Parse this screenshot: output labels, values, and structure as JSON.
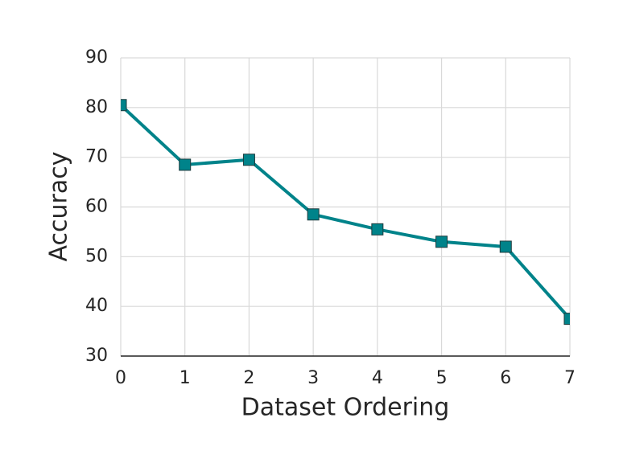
{
  "chart_data": {
    "type": "line",
    "xlabel": "Dataset Ordering",
    "ylabel": "Accuracy",
    "x": [
      0,
      1,
      2,
      3,
      4,
      5,
      6,
      7
    ],
    "series": [
      {
        "color": "#00838a",
        "values": [
          80.5,
          68.5,
          69.5,
          58.5,
          55.5,
          53,
          52,
          37.5
        ]
      }
    ],
    "xlim": [
      0,
      7
    ],
    "xticks": [
      0,
      1,
      2,
      3,
      4,
      5,
      6,
      7
    ],
    "ylim": [
      30,
      90
    ],
    "yticks": [
      30,
      40,
      50,
      60,
      70,
      80,
      90
    ],
    "grid": true,
    "marker": "square"
  }
}
